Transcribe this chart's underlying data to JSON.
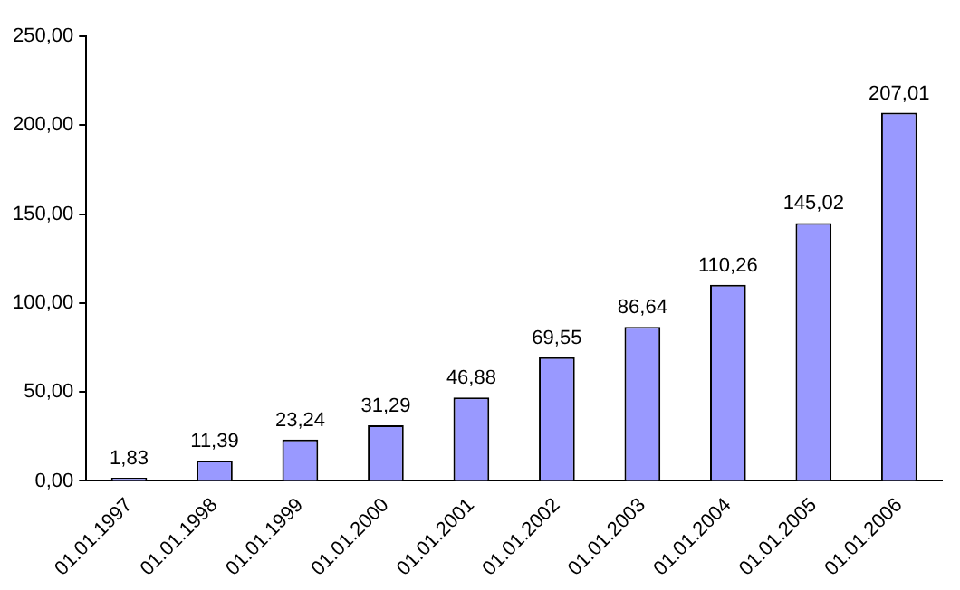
{
  "chart_data": {
    "type": "bar",
    "categories": [
      "01.01.1997",
      "01.01.1998",
      "01.01.1999",
      "01.01.2000",
      "01.01.2001",
      "01.01.2002",
      "01.01.2003",
      "01.01.2004",
      "01.01.2005",
      "01.01.2006"
    ],
    "values": [
      1.83,
      11.39,
      23.24,
      31.29,
      46.88,
      69.55,
      86.64,
      110.26,
      145.02,
      207.01
    ],
    "value_labels": [
      "1,83",
      "11,39",
      "23,24",
      "31,29",
      "46,88",
      "69,55",
      "86,64",
      "110,26",
      "145,02",
      "207,01"
    ],
    "color": "#9999ff",
    "ylim": [
      0,
      250
    ],
    "yticks": [
      {
        "value": 0,
        "label": "0,00"
      },
      {
        "value": 50,
        "label": "50,00"
      },
      {
        "value": 100,
        "label": "100,00"
      },
      {
        "value": 150,
        "label": "150,00"
      },
      {
        "value": 200,
        "label": "200,00"
      },
      {
        "value": 250,
        "label": "250,00"
      }
    ],
    "grid": false,
    "legend": false
  }
}
